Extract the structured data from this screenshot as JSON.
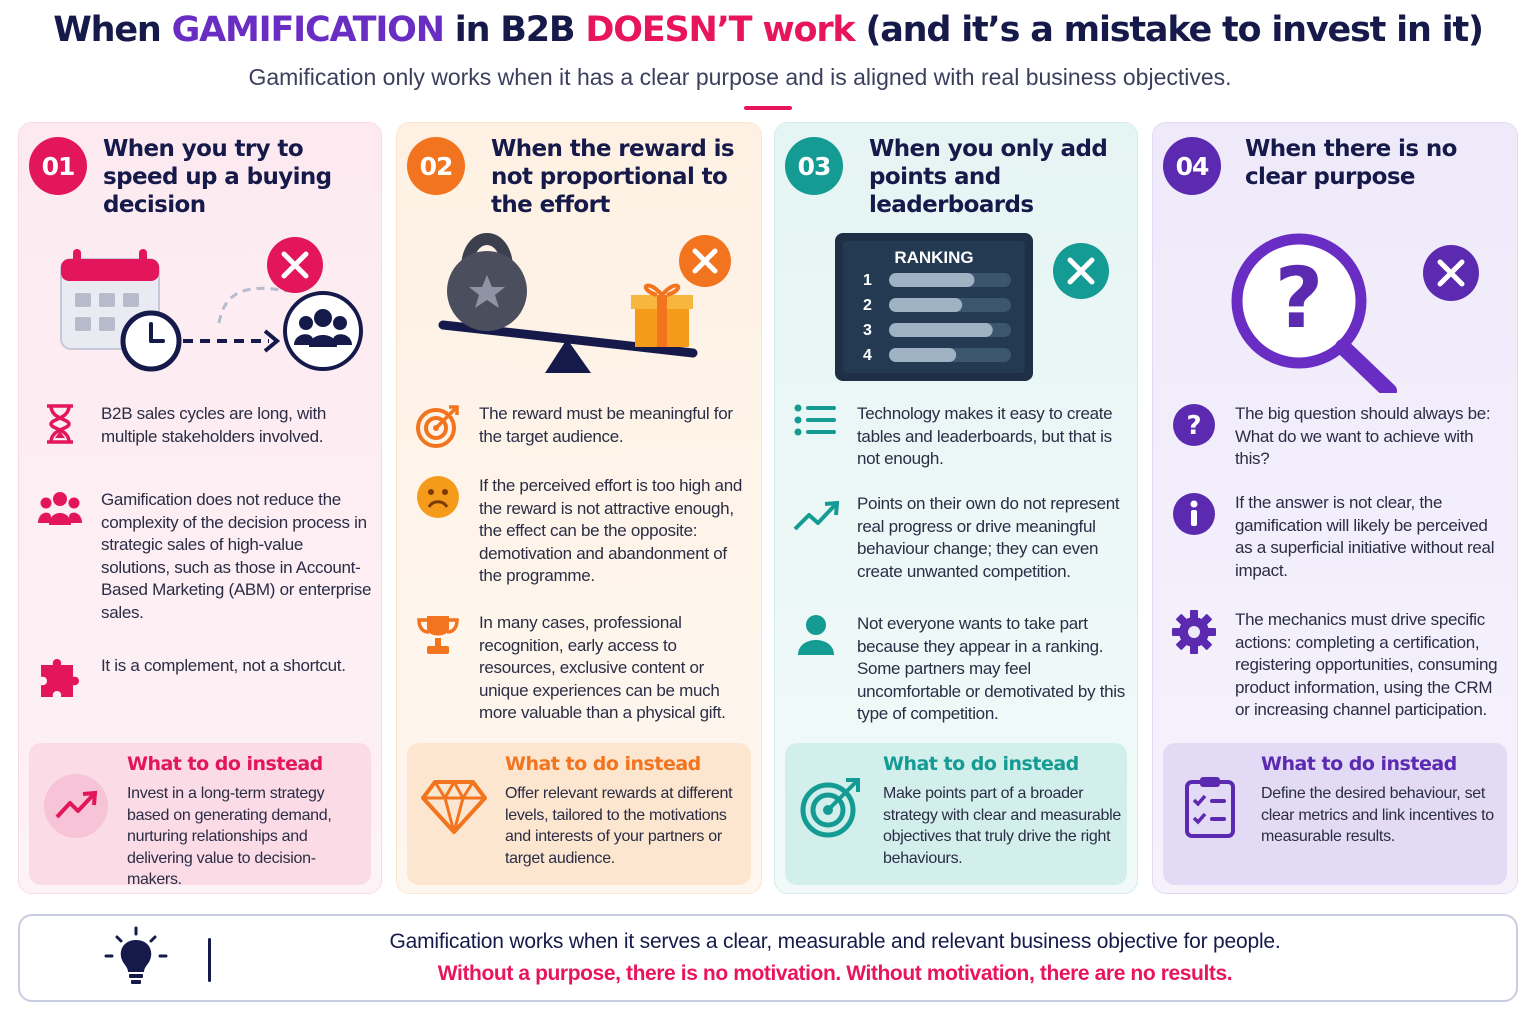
{
  "header": {
    "title_part1": "When ",
    "title_gamification": "GAMIFICATION",
    "title_part2": " in B2B ",
    "title_doesnt": "DOESN’T work",
    "title_part3": " (and it’s a mistake to invest in it)",
    "subtitle": "Gamification only works when it has a clear purpose and is aligned with real business objectives."
  },
  "colors": {
    "pink": "#e3165c",
    "orange": "#f2741e",
    "teal": "#149b93",
    "purple": "#5b2ab0",
    "navy": "#161a4a"
  },
  "cards": [
    {
      "number": "01",
      "title": "When you try to speed up a buying decision",
      "illustration_icons": [
        "calendar-icon",
        "clock-icon",
        "cross-icon",
        "people-icon"
      ],
      "points": [
        {
          "icon": "hourglass-icon",
          "text": "B2B sales cycles are long, with multiple stakeholders involved."
        },
        {
          "icon": "group-icon",
          "text": "Gamification does not reduce the complexity of the decision process in strategic sales of high-value solutions, such as those in Account-Based Marketing (ABM) or enterprise sales."
        },
        {
          "icon": "puzzle-icon",
          "text": "It is a complement, not a shortcut."
        }
      ],
      "instead": {
        "icon": "trend-up-icon",
        "heading": "What to do instead",
        "text": "Invest in a long-term strategy based on generating demand, nurturing relationships and delivering value to decision-makers."
      }
    },
    {
      "number": "02",
      "title": "When the reward is not proportional to the effort",
      "illustration_icons": [
        "kettlebell-icon",
        "gift-icon",
        "cross-icon",
        "seesaw-icon"
      ],
      "points": [
        {
          "icon": "target-icon",
          "text": "The reward must be meaningful for the target audience."
        },
        {
          "icon": "sad-face-icon",
          "text": "If the perceived effort is too high and the reward is not attractive enough, the effect can be the opposite: demotivation and abandonment of the programme."
        },
        {
          "icon": "trophy-icon",
          "text": "In many cases, professional recognition, early access to resources, exclusive content or unique experiences can be much more valuable than a physical gift."
        }
      ],
      "instead": {
        "icon": "diamond-icon",
        "heading": "What to do instead",
        "text": "Offer relevant rewards at different levels, tailored to the motivations and interests of your partners or target audience."
      }
    },
    {
      "number": "03",
      "title": "When you only add points and leaderboards",
      "illustration": {
        "board_title": "RANKING",
        "rows": [
          "1",
          "2",
          "3",
          "4"
        ],
        "bar_fill": [
          0.7,
          0.6,
          0.85,
          0.55
        ]
      },
      "illustration_icons": [
        "leaderboard-icon",
        "cross-icon"
      ],
      "points": [
        {
          "icon": "list-icon",
          "text": "Technology makes it easy to create tables and leaderboards, but that is not enough."
        },
        {
          "icon": "trend-line-icon",
          "text": "Points on their own do not represent real progress or drive meaningful behaviour change; they can even create unwanted competition."
        },
        {
          "icon": "person-icon",
          "text": "Not everyone wants to take part because they appear in a ranking. Some partners may feel uncomfortable or demotivated by this type of competition."
        }
      ],
      "instead": {
        "icon": "bullseye-icon",
        "heading": "What to do instead",
        "text": "Make points part of a broader strategy with clear and measurable objectives that truly drive the right behaviours."
      }
    },
    {
      "number": "04",
      "title": "When there is no clear purpose",
      "illustration_icons": [
        "magnifier-question-icon",
        "cross-icon"
      ],
      "points": [
        {
          "icon": "question-icon",
          "text": "The big question should always be: What do we want to achieve with this?"
        },
        {
          "icon": "info-icon",
          "text": "If the answer is not clear, the gamification will likely be perceived as a superficial initiative without real impact."
        },
        {
          "icon": "gear-icon",
          "text": "The mechanics must drive specific actions: completing a certification, registering opportunities, consuming product information, using the CRM or increasing channel participation."
        }
      ],
      "instead": {
        "icon": "checklist-icon",
        "heading": "What to do instead",
        "text": "Define the desired behaviour, set clear metrics and link incentives to measurable results."
      }
    }
  ],
  "footer": {
    "icon": "lightbulb-icon",
    "line1": "Gamification works when it serves a clear, measurable and relevant business objective for people.",
    "line2": "Without a purpose, there is no motivation. Without motivation, there are no results."
  }
}
